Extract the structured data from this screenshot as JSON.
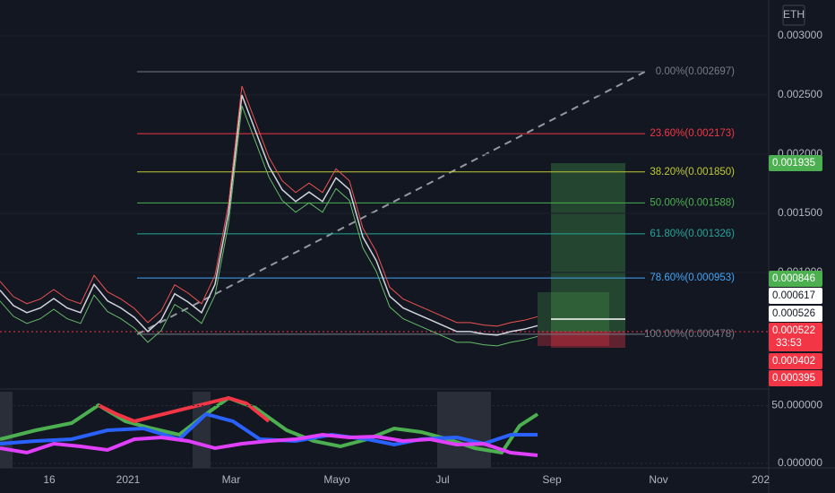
{
  "chart_data": {
    "type": "line",
    "symbol": "ETH",
    "values": [
      0.00085,
      0.00072,
      0.00066,
      0.0007,
      0.00078,
      0.0007,
      0.00066,
      0.0009,
      0.00076,
      0.0007,
      0.00062,
      0.0005,
      0.0006,
      0.00082,
      0.00075,
      0.00066,
      0.0009,
      0.0015,
      0.0025,
      0.0022,
      0.0019,
      0.0017,
      0.0016,
      0.00168,
      0.0016,
      0.0018,
      0.0017,
      0.0013,
      0.0011,
      0.0008,
      0.0007,
      0.00065,
      0.0006,
      0.00055,
      0.0005,
      0.0005,
      0.00048,
      0.00047,
      0.0005,
      0.00052,
      0.00055
    ],
    "color": "#d1d4dc",
    "ylim": [
      4.5e-05,
      0.003303
    ],
    "yticks": [
      {
        "value": 0.003,
        "label": "0.003000"
      },
      {
        "value": 0.0025,
        "label": "0.002500"
      },
      {
        "value": 0.002,
        "label": "0.002000"
      },
      {
        "value": 0.0015,
        "label": "0.001500"
      },
      {
        "value": 0.001,
        "label": "0.001000"
      }
    ],
    "fib_levels": [
      {
        "label": "0.00%(0.002697)",
        "value": 0.002697,
        "color": "#787b86"
      },
      {
        "label": "23.60%(0.002173)",
        "value": 0.002173,
        "color": "#f23645"
      },
      {
        "label": "38.20%(0.001850)",
        "value": 0.00185,
        "color": "#c0ca33"
      },
      {
        "label": "50.00%(0.001588)",
        "value": 0.001588,
        "color": "#4caf50"
      },
      {
        "label": "61.80%(0.001326)",
        "value": 0.001326,
        "color": "#26a69a"
      },
      {
        "label": "78.60%(0.000953)",
        "value": 0.000953,
        "color": "#42a5f5"
      },
      {
        "label": "100.00%(0.000478)",
        "value": 0.000478,
        "color": "#787b86"
      }
    ],
    "price_tags": [
      {
        "label": "0.001935",
        "color": "#4caf50"
      },
      {
        "label": "0.000846",
        "color": "#4caf50"
      },
      {
        "label": "0.000617",
        "color": "#ffffff"
      },
      {
        "label": "0.000526",
        "color": "#ffffff"
      },
      {
        "label": "0.000522",
        "color": "#f23645",
        "countdown": "33:53"
      },
      {
        "label": "0.000402",
        "color": "#f23645"
      },
      {
        "label": "0.000395",
        "color": "#f23645"
      }
    ],
    "indicator": {
      "ylim": [
        -4,
        62
      ],
      "yticks": [
        {
          "value": 50,
          "label": "50.000000"
        },
        {
          "value": 0,
          "label": "0.000000"
        }
      ]
    },
    "x_labels": [
      "16",
      "2021",
      "Mar",
      "Mayo",
      "Jul",
      "Sep",
      "Nov",
      "202"
    ]
  }
}
